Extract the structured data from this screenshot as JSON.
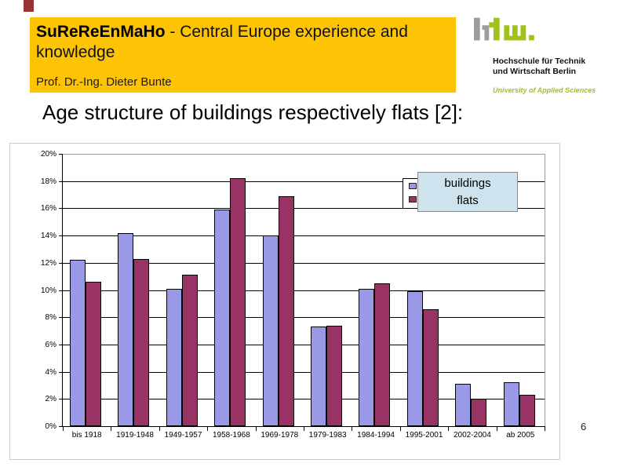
{
  "slide": {
    "page_number": "6"
  },
  "header": {
    "project_bold": "SuReReEnMaHo",
    "title_rest": " - Central Europe experience and knowledge",
    "author": "Prof. Dr.-Ing. Dieter Bunte"
  },
  "logo": {
    "line1": "Hochschule für Technik",
    "line2": "und Wirtschaft Berlin",
    "line3": "University of Applied Sciences"
  },
  "main_title": "Age structure of buildings respectively flats [2]:",
  "colors": {
    "banner": "#fcc405",
    "accent_square": "#993333",
    "legend_box_bg": "#cfe3ef",
    "logo_green": "#9fc31c",
    "logo_gray": "#9c9c9b"
  },
  "chart_data": {
    "type": "bar",
    "title": "",
    "xlabel": "",
    "ylabel": "",
    "categories": [
      "bis 1918",
      "1919-1948",
      "1949-1957",
      "1958-1968",
      "1969-1978",
      "1979-1983",
      "1984-1994",
      "1995-2001",
      "2002-2004",
      "ab 2005"
    ],
    "series": [
      {
        "name": "buildings",
        "color": "#9999e8",
        "values": [
          12.2,
          14.2,
          10.1,
          15.9,
          14.0,
          7.3,
          10.1,
          9.9,
          3.1,
          3.2
        ]
      },
      {
        "name": "flats",
        "color": "#993366",
        "values": [
          10.6,
          12.3,
          11.1,
          18.2,
          16.9,
          7.4,
          10.5,
          8.6,
          2.0,
          2.3
        ]
      }
    ],
    "ylim": [
      0,
      20
    ],
    "ytick_step": 2,
    "ytick_labels": [
      "0%",
      "2%",
      "4%",
      "6%",
      "8%",
      "10%",
      "12%",
      "14%",
      "16%",
      "18%",
      "20%"
    ],
    "grid": true,
    "legend_position": "top-right",
    "legend_labels": [
      "buildings",
      "flats"
    ]
  }
}
